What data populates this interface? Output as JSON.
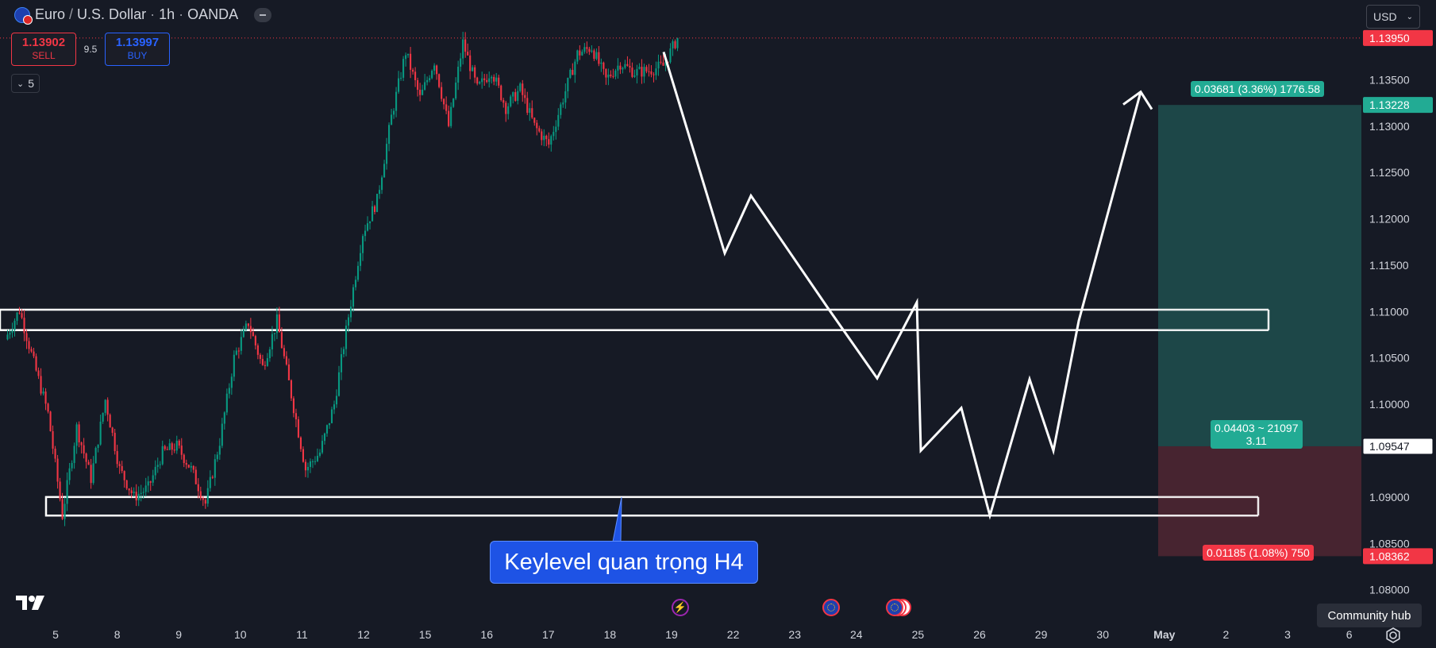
{
  "header": {
    "symbol": "Euro",
    "sep": "/",
    "quote": "U.S. Dollar",
    "dot1": "·",
    "interval": "1h",
    "dot2": "·",
    "broker": "OANDA"
  },
  "trading": {
    "sell_price": "1.13902",
    "sell_label": "SELL",
    "spread": "9.5",
    "buy_price": "1.13997",
    "buy_label": "BUY"
  },
  "indicators_toggle": "5",
  "currency": "USD",
  "callout": {
    "text": "Keylevel quan trọng H4"
  },
  "community_hub": "Community hub",
  "position_tool": {
    "target_label": "0.03681 (3.36%) 1776.58",
    "entry_label_line1": "0.04403 ~ 21097",
    "entry_label_line2": "3.11",
    "stop_label": "0.01185 (1.08%) 750",
    "target_price": 1.13228,
    "entry_price": 1.09547,
    "stop_price": 1.08362
  },
  "colors": {
    "background": "#161a25",
    "up": "#089981",
    "down": "#f23645",
    "profit_zone": "#1e4a4a",
    "loss_zone": "#4a2530"
  },
  "chart_data": {
    "type": "candlestick",
    "title": "Euro / U.S. Dollar · 1h · OANDA",
    "price_axis": {
      "ticks": [
        "1.13500",
        "1.13000",
        "1.12500",
        "1.12000",
        "1.11500",
        "1.11000",
        "1.10500",
        "1.10000",
        "1.09500",
        "1.09000",
        "1.08500",
        "1.08000"
      ],
      "ylim": [
        1.0768,
        1.1436
      ]
    },
    "price_labels": [
      {
        "text": "1.13950",
        "value": 1.1395,
        "style": "current"
      },
      {
        "text": "1.13228",
        "value": 1.13228,
        "style": "target"
      },
      {
        "text": "1.09547",
        "value": 1.09547,
        "style": "entry"
      },
      {
        "text": "1.08362",
        "value": 1.08362,
        "style": "stop"
      }
    ],
    "time_axis": {
      "labels": [
        "5",
        "8",
        "9",
        "10",
        "11",
        "12",
        "15",
        "16",
        "17",
        "18",
        "19",
        "22",
        "23",
        "24",
        "25",
        "26",
        "29",
        "30",
        "May",
        "2",
        "3",
        "6"
      ]
    },
    "series": [
      {
        "type": "ohlc-path",
        "points": [
          [
            0,
            1.107
          ],
          [
            1,
            1.1102
          ],
          [
            2,
            1.1045
          ],
          [
            3,
            1.099
          ],
          [
            4,
            1.088
          ],
          [
            5,
            1.0975
          ],
          [
            6,
            1.092
          ],
          [
            7,
            1.1005
          ],
          [
            8,
            1.093
          ],
          [
            9,
            1.09
          ],
          [
            10,
            1.091
          ],
          [
            11,
            1.0948
          ],
          [
            12,
            1.0955
          ],
          [
            13,
            1.093
          ],
          [
            14,
            1.0893
          ],
          [
            15,
            1.096
          ],
          [
            16,
            1.105
          ],
          [
            17,
            1.1088
          ],
          [
            18,
            1.104
          ],
          [
            19,
            1.109
          ],
          [
            20,
            1.101
          ],
          [
            21,
            1.093
          ],
          [
            22,
            1.0948
          ],
          [
            23,
            1.1
          ],
          [
            24,
            1.1095
          ],
          [
            25,
            1.1185
          ],
          [
            26,
            1.122
          ],
          [
            27,
            1.131
          ],
          [
            28,
            1.138
          ],
          [
            29,
            1.133
          ],
          [
            30,
            1.137
          ],
          [
            31,
            1.13
          ],
          [
            32,
            1.139
          ],
          [
            33,
            1.134
          ],
          [
            34,
            1.136
          ],
          [
            35,
            1.132
          ],
          [
            36,
            1.134
          ],
          [
            37,
            1.13
          ],
          [
            38,
            1.128
          ],
          [
            39,
            1.133
          ],
          [
            40,
            1.1378
          ],
          [
            41,
            1.1385
          ],
          [
            42,
            1.135
          ],
          [
            43,
            1.1368
          ],
          [
            44,
            1.1358
          ],
          [
            45,
            1.136
          ],
          [
            46,
            1.1365
          ],
          [
            47,
            1.1395
          ]
        ]
      }
    ],
    "drawings": {
      "zones": [
        {
          "name": "zone-upper",
          "from": 1.108,
          "to": 1.1102
        },
        {
          "name": "zone-lower",
          "from": 1.088,
          "to": 1.09
        }
      ],
      "projection_path": [
        [
          1.138
        ],
        [
          1.1163
        ],
        [
          1.1225
        ],
        [
          1.1105
        ],
        [
          1.1028
        ],
        [
          1.111
        ],
        [
          1.095
        ],
        [
          1.0996
        ],
        [
          1.088
        ],
        [
          1.1027
        ],
        [
          1.095
        ],
        [
          1.109
        ],
        [
          1.1337
        ]
      ]
    }
  }
}
